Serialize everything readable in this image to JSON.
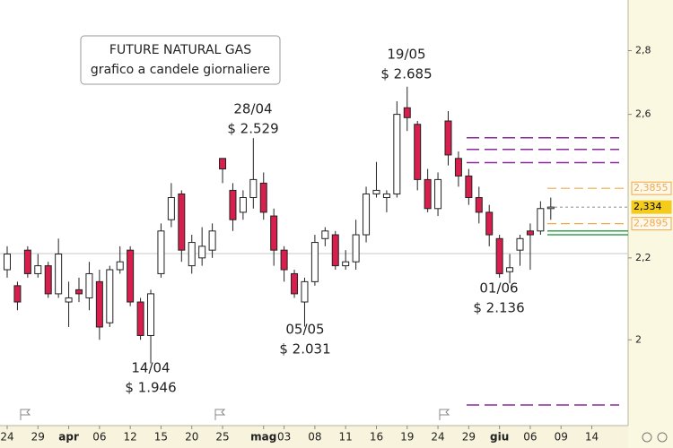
{
  "chart_data": {
    "type": "candlestick",
    "title": "FUTURE NATURAL GAS",
    "subtitle": "grafico a candele giornaliere",
    "categories": [
      "24",
      null,
      null,
      "29",
      null,
      null,
      "apr",
      null,
      null,
      "06",
      null,
      null,
      "12",
      null,
      null,
      "15",
      null,
      null,
      "20",
      null,
      null,
      "25",
      null,
      null,
      null,
      "mag",
      null,
      "03",
      null,
      null,
      "08",
      null,
      null,
      "11",
      null,
      null,
      "16",
      null,
      null,
      "19",
      null,
      null,
      "24",
      null,
      null,
      "29",
      null,
      null,
      "giu",
      null,
      null,
      "06",
      null,
      null,
      "09",
      null,
      null,
      "14"
    ],
    "open": [
      2.17,
      2.13,
      2.22,
      2.16,
      2.18,
      2.11,
      2.09,
      2.12,
      2.1,
      2.14,
      2.04,
      2.17,
      2.22,
      2.09,
      2.01,
      2.16,
      2.3,
      2.37,
      2.18,
      2.2,
      2.22,
      2.47,
      2.38,
      2.32,
      2.36,
      2.4,
      2.31,
      2.22,
      2.16,
      2.09,
      2.14,
      2.25,
      2.26,
      2.18,
      2.19,
      2.26,
      2.37,
      2.36,
      2.37,
      2.62,
      2.57,
      2.41,
      2.33,
      2.58,
      2.47,
      2.42,
      2.36,
      2.32,
      2.25,
      2.165,
      2.22,
      2.27,
      2.27,
      2.33,
      null,
      null,
      null,
      null
    ],
    "high": [
      2.23,
      2.14,
      2.23,
      2.21,
      2.19,
      2.25,
      2.14,
      2.15,
      2.19,
      2.17,
      2.18,
      2.23,
      2.23,
      2.1,
      2.12,
      2.29,
      2.4,
      2.38,
      2.26,
      2.28,
      2.29,
      2.47,
      2.4,
      2.38,
      2.529,
      2.43,
      2.33,
      2.23,
      2.17,
      2.15,
      2.26,
      2.28,
      2.27,
      2.22,
      2.3,
      2.39,
      2.46,
      2.38,
      2.64,
      2.685,
      2.58,
      2.44,
      2.43,
      2.61,
      2.49,
      2.44,
      2.39,
      2.34,
      2.26,
      2.21,
      2.26,
      2.29,
      2.35,
      2.36,
      null,
      null,
      null,
      null
    ],
    "low": [
      2.15,
      2.07,
      2.15,
      2.15,
      2.1,
      2.1,
      2.03,
      2.09,
      2.07,
      2.0,
      2.03,
      2.16,
      2.08,
      2.0,
      1.946,
      2.15,
      2.28,
      2.19,
      2.16,
      2.18,
      2.2,
      2.4,
      2.27,
      2.3,
      2.33,
      2.3,
      2.18,
      2.14,
      2.1,
      2.031,
      2.13,
      2.23,
      2.17,
      2.17,
      2.17,
      2.24,
      2.36,
      2.32,
      2.36,
      2.55,
      2.38,
      2.32,
      2.31,
      2.45,
      2.39,
      2.34,
      2.29,
      2.23,
      2.15,
      2.136,
      2.18,
      2.17,
      2.26,
      2.3,
      null,
      null,
      null,
      null
    ],
    "close": [
      2.21,
      2.09,
      2.16,
      2.18,
      2.11,
      2.21,
      2.1,
      2.11,
      2.16,
      2.03,
      2.17,
      2.19,
      2.09,
      2.01,
      2.11,
      2.27,
      2.36,
      2.22,
      2.24,
      2.23,
      2.27,
      2.44,
      2.3,
      2.36,
      2.41,
      2.32,
      2.22,
      2.17,
      2.11,
      2.14,
      2.24,
      2.27,
      2.18,
      2.19,
      2.26,
      2.37,
      2.38,
      2.37,
      2.6,
      2.59,
      2.41,
      2.33,
      2.41,
      2.48,
      2.42,
      2.36,
      2.32,
      2.26,
      2.16,
      2.175,
      2.25,
      2.26,
      2.33,
      2.334,
      null,
      null,
      null,
      null
    ],
    "up_color": "#ffffff",
    "down_color": "#d81e4c",
    "ylim": [
      1.81,
      2.97
    ],
    "yticks": [
      2,
      {
        "value": 2.2,
        "label": "2,2"
      },
      {
        "value": 2.6,
        "label": "2,6"
      },
      {
        "value": 2.8,
        "label": "2,8"
      }
    ],
    "log_scale": true,
    "grid": false,
    "annotations": [
      {
        "date": "14/04",
        "price": "$ 1.946"
      },
      {
        "date": "28/04",
        "price": "$ 2.529"
      },
      {
        "date": "05/05",
        "price": "$ 2.031"
      },
      {
        "date": "19/05",
        "price": "$ 2.685"
      },
      {
        "date": "01/06",
        "price": "$ 2.136"
      }
    ],
    "levels": [
      {
        "value": 2.53,
        "color": "#8a2a9a"
      },
      {
        "value": 2.496,
        "color": "#8a2a9a"
      },
      {
        "value": 2.458,
        "color": "#8a2a9a"
      },
      {
        "value": 1.854,
        "color": "#8a2a9a"
      },
      {
        "value": 2.27,
        "color": "#3aa050"
      },
      {
        "value": 2.26,
        "color": "#3aa050"
      },
      {
        "value": 2.3855,
        "label": "2,3855",
        "color": "#f0a848"
      },
      {
        "value": 2.2895,
        "label": "2,2895",
        "color": "#f0a848"
      },
      {
        "value": 2.334,
        "label": "2,334",
        "color": "#f4cc1c"
      }
    ]
  }
}
